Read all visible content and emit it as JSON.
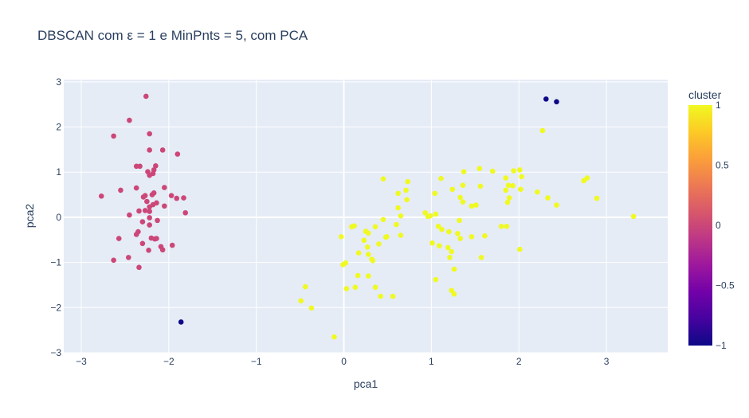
{
  "chart_data": {
    "type": "scatter",
    "title": "DBSCAN com ε = 1 e MinPnts = 5, com PCA",
    "xlabel": "pca1",
    "ylabel": "pca2",
    "xlim": [
      -3.2,
      3.7
    ],
    "ylim": [
      -3.0,
      3.05
    ],
    "x_ticks": [
      -3,
      -2,
      -1,
      0,
      1,
      2,
      3
    ],
    "y_ticks": [
      -3,
      -2,
      -1,
      0,
      1,
      2,
      3
    ],
    "grid": true,
    "colorbar": {
      "title": "cluster",
      "range": [
        -1,
        1
      ],
      "ticks": [
        1,
        0.5,
        0,
        -0.5,
        -1
      ],
      "tick_labels": [
        "1",
        "0.5",
        "0",
        "−0.5",
        "−1"
      ],
      "colors": [
        "#0d0887",
        "#46039f",
        "#7201a8",
        "#9c179e",
        "#bd3786",
        "#d8576b",
        "#ed7953",
        "#fb9f3a",
        "#fdca26",
        "#f0f921"
      ]
    },
    "series": [
      {
        "cluster": 0,
        "color": "#cc4778",
        "points": [
          [
            -2.26,
            2.68
          ],
          [
            -2.45,
            2.15
          ],
          [
            -2.63,
            1.8
          ],
          [
            -2.22,
            1.85
          ],
          [
            -2.22,
            1.49
          ],
          [
            -2.07,
            1.49
          ],
          [
            -1.9,
            1.4
          ],
          [
            -2.37,
            1.13
          ],
          [
            -2.33,
            1.13
          ],
          [
            -2.15,
            1.14
          ],
          [
            -2.24,
            1.01
          ],
          [
            -2.17,
            1.05
          ],
          [
            -2.22,
            0.93
          ],
          [
            -2.18,
            0.97
          ],
          [
            -2.77,
            0.47
          ],
          [
            -2.55,
            0.6
          ],
          [
            -2.37,
            0.65
          ],
          [
            -2.05,
            0.66
          ],
          [
            -2.29,
            0.45
          ],
          [
            -2.27,
            0.48
          ],
          [
            -2.19,
            0.5
          ],
          [
            -2.17,
            0.54
          ],
          [
            -1.97,
            0.48
          ],
          [
            -1.91,
            0.42
          ],
          [
            -1.83,
            0.43
          ],
          [
            -2.25,
            0.35
          ],
          [
            -2.22,
            0.23
          ],
          [
            -2.18,
            0.28
          ],
          [
            -2.14,
            0.32
          ],
          [
            -2.05,
            0.25
          ],
          [
            -1.81,
            0.1
          ],
          [
            -2.45,
            0.05
          ],
          [
            -2.22,
            0.13
          ],
          [
            -2.27,
            0.15
          ],
          [
            -2.34,
            0.14
          ],
          [
            -2.22,
            -0.01
          ],
          [
            -2.35,
            -0.32
          ],
          [
            -2.37,
            -0.38
          ],
          [
            -2.2,
            -0.46
          ],
          [
            -2.16,
            -0.48
          ],
          [
            -2.14,
            -0.47
          ],
          [
            -2.57,
            -0.47
          ],
          [
            -2.09,
            -0.65
          ],
          [
            -2.07,
            -0.72
          ],
          [
            -1.96,
            -0.62
          ],
          [
            -2.3,
            -0.58
          ],
          [
            -2.23,
            -0.73
          ],
          [
            -2.46,
            -0.89
          ],
          [
            -2.63,
            -0.95
          ],
          [
            -2.34,
            -1.11
          ],
          [
            -2.22,
            -0.17
          ],
          [
            -2.3,
            -0.1
          ],
          [
            -2.13,
            -0.07
          ]
        ]
      },
      {
        "cluster": 1,
        "color": "#f0f921",
        "points": [
          [
            2.27,
            1.92
          ],
          [
            2.33,
            0.43
          ],
          [
            1.55,
            1.08
          ],
          [
            1.37,
            1.01
          ],
          [
            1.7,
            1.02
          ],
          [
            1.94,
            1.03
          ],
          [
            2.01,
            1.05
          ],
          [
            2.03,
            0.9
          ],
          [
            1.85,
            0.87
          ],
          [
            2.78,
            0.87
          ],
          [
            2.74,
            0.81
          ],
          [
            0.45,
            0.85
          ],
          [
            1.11,
            0.86
          ],
          [
            0.73,
            0.79
          ],
          [
            1.24,
            0.62
          ],
          [
            1.36,
            0.71
          ],
          [
            1.88,
            0.71
          ],
          [
            1.93,
            0.7
          ],
          [
            1.56,
            0.69
          ],
          [
            0.71,
            0.6
          ],
          [
            0.62,
            0.53
          ],
          [
            1.85,
            0.6
          ],
          [
            2.02,
            0.62
          ],
          [
            2.21,
            0.56
          ],
          [
            1.04,
            0.53
          ],
          [
            0.96,
            0.02
          ],
          [
            1.89,
            0.43
          ],
          [
            2.89,
            0.42
          ],
          [
            1.33,
            0.44
          ],
          [
            0.72,
            0.39
          ],
          [
            1.87,
            0.33
          ],
          [
            1.36,
            0.34
          ],
          [
            1.51,
            0.27
          ],
          [
            1.46,
            0.25
          ],
          [
            2.43,
            0.27
          ],
          [
            0.62,
            0.21
          ],
          [
            0.93,
            0.1
          ],
          [
            0.99,
            0.03
          ],
          [
            1.05,
            0.07
          ],
          [
            0.65,
            0.03
          ],
          [
            1.32,
            -0.07
          ],
          [
            3.31,
            0.02
          ],
          [
            0.45,
            -0.05
          ],
          [
            0.6,
            -0.16
          ],
          [
            1.8,
            -0.2
          ],
          [
            1.86,
            -0.2
          ],
          [
            1.08,
            -0.2
          ],
          [
            1.12,
            -0.27
          ],
          [
            1.2,
            -0.32
          ],
          [
            1.3,
            -0.36
          ],
          [
            0.12,
            -0.19
          ],
          [
            0.09,
            -0.21
          ],
          [
            0.25,
            -0.31
          ],
          [
            0.28,
            -0.35
          ],
          [
            0.36,
            -0.21
          ],
          [
            0.49,
            -0.43
          ],
          [
            0.48,
            -0.44
          ],
          [
            0.65,
            -0.4
          ],
          [
            1.01,
            -0.57
          ],
          [
            1.09,
            -0.63
          ],
          [
            1.19,
            -0.67
          ],
          [
            1.23,
            -0.76
          ],
          [
            1.21,
            -0.89
          ],
          [
            1.33,
            -0.47
          ],
          [
            1.46,
            -0.43
          ],
          [
            1.61,
            -0.41
          ],
          [
            1.57,
            -0.89
          ],
          [
            1.26,
            -1.15
          ],
          [
            2.01,
            -0.71
          ],
          [
            -0.03,
            -0.43
          ],
          [
            0.23,
            -0.51
          ],
          [
            0.27,
            -0.66
          ],
          [
            0.4,
            -0.59
          ],
          [
            0.17,
            -0.79
          ],
          [
            0.28,
            -0.82
          ],
          [
            0.32,
            -0.93
          ],
          [
            0.33,
            -0.96
          ],
          [
            -0.01,
            -1.05
          ],
          [
            0.02,
            -1.01
          ],
          [
            0.16,
            -1.29
          ],
          [
            0.28,
            -1.3
          ],
          [
            1.05,
            -1.38
          ],
          [
            1.23,
            -1.62
          ],
          [
            1.26,
            -1.7
          ],
          [
            0.36,
            -1.55
          ],
          [
            0.42,
            -1.75
          ],
          [
            0.56,
            -1.75
          ],
          [
            0.13,
            -1.55
          ],
          [
            0.03,
            -1.58
          ],
          [
            -0.44,
            -1.54
          ],
          [
            -0.49,
            -1.85
          ],
          [
            -0.37,
            -2.01
          ],
          [
            -0.11,
            -2.65
          ]
        ]
      },
      {
        "cluster": -1,
        "color": "#0d0887",
        "points": [
          [
            2.31,
            2.62
          ],
          [
            2.43,
            2.56
          ],
          [
            -1.86,
            -2.32
          ]
        ]
      }
    ]
  }
}
